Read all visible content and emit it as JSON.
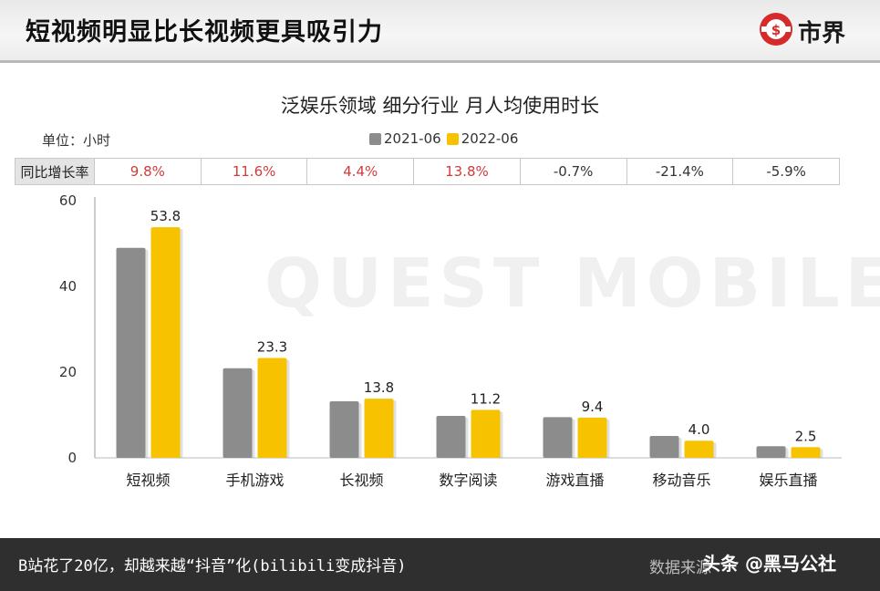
{
  "header": {
    "title": "短视频明显比长视频更具吸引力",
    "brand": "市界"
  },
  "chart": {
    "title": "泛娱乐领域 细分行业 月人均使用时长",
    "unit": "单位：小时",
    "watermark": "QUEST MOBILE"
  },
  "legend": [
    {
      "label": "2021-06",
      "color": "#8c8c8c"
    },
    {
      "label": "2022-06",
      "color": "#f7c300"
    }
  ],
  "yoy": {
    "label": "同比增长率",
    "values": [
      "9.8%",
      "11.6%",
      "4.4%",
      "13.8%",
      "-0.7%",
      "-21.4%",
      "-5.9%"
    ]
  },
  "chart_data": {
    "type": "bar",
    "title": "泛娱乐领域 细分行业 月人均使用时长",
    "categories": [
      "短视频",
      "手机游戏",
      "长视频",
      "数字阅读",
      "游戏直播",
      "移动音乐",
      "娱乐直播"
    ],
    "series": [
      {
        "name": "2021-06",
        "values": [
          49.0,
          20.9,
          13.2,
          9.8,
          9.5,
          5.1,
          2.7
        ]
      },
      {
        "name": "2022-06",
        "values": [
          53.8,
          23.3,
          13.8,
          11.2,
          9.4,
          4.0,
          2.5
        ]
      }
    ],
    "data_labels_series": "2022-06",
    "ylim": [
      0,
      60
    ],
    "yticks": [
      0,
      20,
      40,
      60
    ],
    "xlabel": "",
    "ylabel": "",
    "grid": false,
    "legend_position": "top-center"
  },
  "footer": {
    "caption": "B站花了20亿，却越来越“抖音”化(bilibili变成抖音)",
    "source": "数据来源",
    "credit": "头条 @黑马公社"
  }
}
